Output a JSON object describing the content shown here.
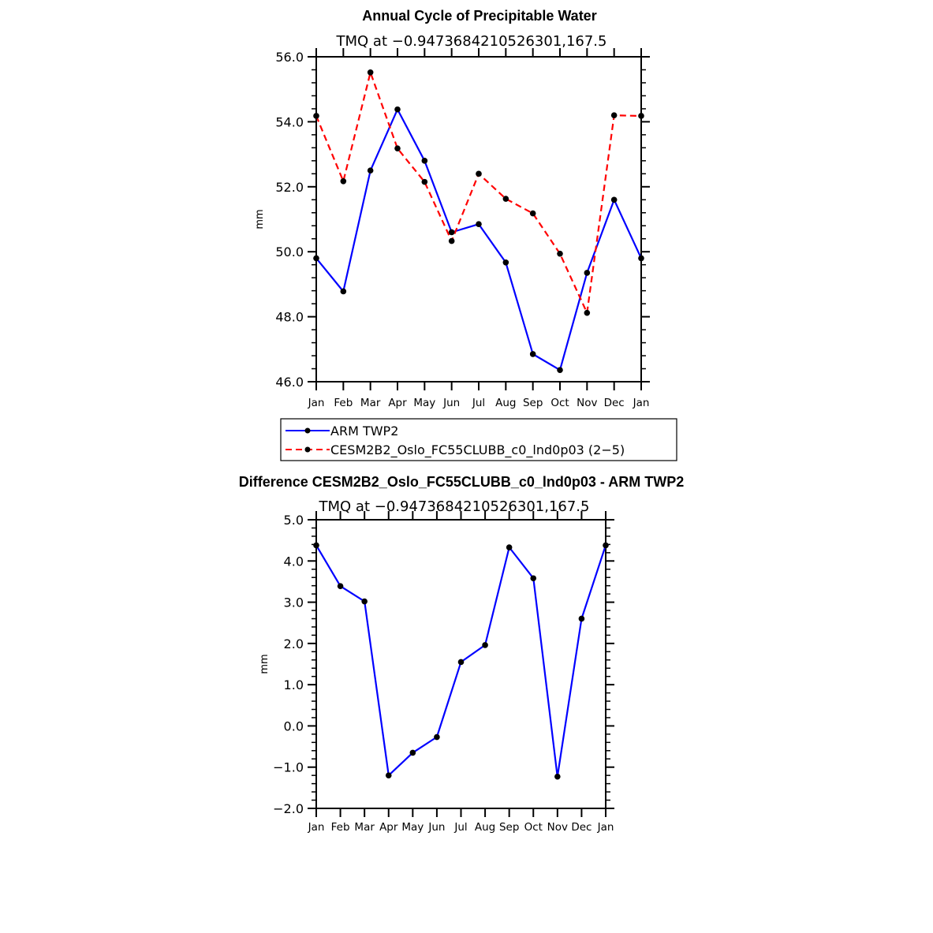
{
  "chart_data": [
    {
      "type": "line",
      "title": "Annual Cycle of Precipitable Water",
      "subtitle": "TMQ at −0.9473684210526301,167.5",
      "xlabel": "",
      "ylabel": "mm",
      "categories": [
        "Jan",
        "Feb",
        "Mar",
        "Apr",
        "May",
        "Jun",
        "Jul",
        "Aug",
        "Sep",
        "Oct",
        "Nov",
        "Dec",
        "Jan"
      ],
      "ylim": [
        46.0,
        56.0
      ],
      "yticks": [
        "46.0",
        "48.0",
        "50.0",
        "52.0",
        "54.0",
        "56.0"
      ],
      "series": [
        {
          "name": "ARM TWP2",
          "color": "#0000ff",
          "dash": "solid",
          "values": [
            49.8,
            48.78,
            52.5,
            54.38,
            52.8,
            50.6,
            50.85,
            49.67,
            46.85,
            46.36,
            49.35,
            51.6,
            49.8
          ]
        },
        {
          "name": "CESM2B2_Oslo_FC55CLUBB_c0_lnd0p03 (2−5)",
          "color": "#ff0000",
          "dash": "dashed",
          "values": [
            54.18,
            52.17,
            55.52,
            53.18,
            52.15,
            50.33,
            52.4,
            51.63,
            51.18,
            49.94,
            48.12,
            54.2,
            54.18
          ]
        }
      ],
      "legend": "bottom"
    },
    {
      "type": "line",
      "title": "Difference CESM2B2_Oslo_FC55CLUBB_c0_lnd0p03 - ARM TWP2",
      "subtitle": "TMQ at −0.9473684210526301,167.5",
      "xlabel": "",
      "ylabel": "mm",
      "categories": [
        "Jan",
        "Feb",
        "Mar",
        "Apr",
        "May",
        "Jun",
        "Jul",
        "Aug",
        "Sep",
        "Oct",
        "Nov",
        "Dec",
        "Jan"
      ],
      "ylim": [
        -2.0,
        5.0
      ],
      "yticks": [
        "−2.0",
        "−1.0",
        "0.0",
        "1.0",
        "2.0",
        "3.0",
        "4.0",
        "5.0"
      ],
      "series": [
        {
          "name": "Difference",
          "color": "#0000ff",
          "dash": "solid",
          "values": [
            4.38,
            3.39,
            3.02,
            -1.2,
            -0.65,
            -0.27,
            1.55,
            1.96,
            4.33,
            3.58,
            -1.23,
            2.6,
            4.38
          ]
        }
      ]
    }
  ]
}
